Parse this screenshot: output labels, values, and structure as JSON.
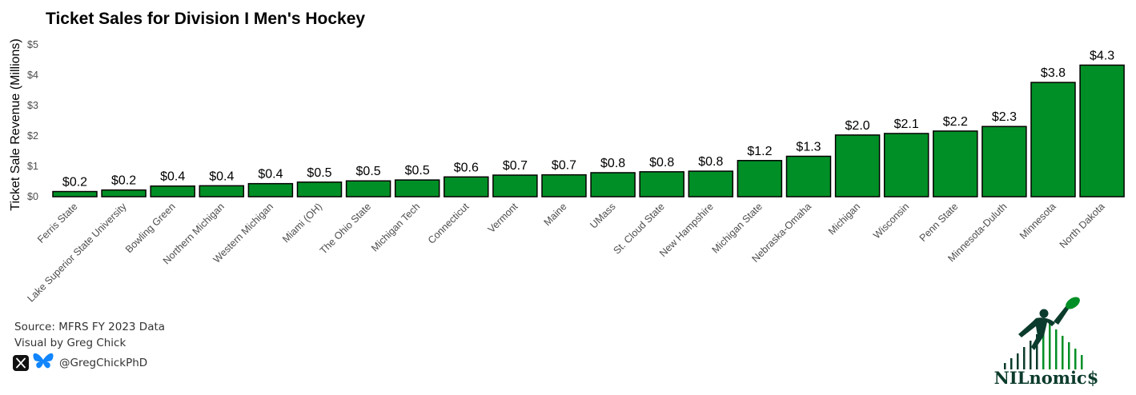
{
  "chart_data": {
    "type": "bar",
    "title": "Ticket Sales for Division I Men's Hockey",
    "xlabel": "",
    "ylabel": "Ticket Sale Revenue (Millions)",
    "ylim": [
      0,
      5
    ],
    "yticks": [
      0,
      1,
      2,
      3,
      4,
      5
    ],
    "ytick_labels": [
      "$0",
      "$1",
      "$2",
      "$3",
      "$4",
      "$5"
    ],
    "categories": [
      "Ferris State",
      "Lake Superior State University",
      "Bowling Green",
      "Northern Michigan",
      "Western Michigan",
      "Miami (OH)",
      "The Ohio State",
      "Michigan Tech",
      "Connecticut",
      "Vermont",
      "Maine",
      "UMass",
      "St. Cloud State",
      "New Hampshire",
      "Michigan State",
      "Nebraska-Omaha",
      "Michigan",
      "Wisconsin",
      "Penn State",
      "Minnesota-Duluth",
      "Minnesota",
      "North Dakota"
    ],
    "values": [
      0.17,
      0.22,
      0.35,
      0.36,
      0.43,
      0.48,
      0.52,
      0.55,
      0.65,
      0.71,
      0.72,
      0.79,
      0.82,
      0.84,
      1.19,
      1.33,
      2.03,
      2.08,
      2.16,
      2.31,
      3.76,
      4.33
    ],
    "data_labels": [
      "$0.2",
      "$0.2",
      "$0.4",
      "$0.4",
      "$0.4",
      "$0.5",
      "$0.5",
      "$0.5",
      "$0.6",
      "$0.7",
      "$0.7",
      "$0.8",
      "$0.8",
      "$0.8",
      "$1.2",
      "$1.3",
      "$2.0",
      "$2.1",
      "$2.2",
      "$2.3",
      "$3.8",
      "$4.3"
    ],
    "bar_color": "#008f26",
    "grid": false,
    "legend": "none"
  },
  "credits": {
    "source": "Source: MFRS FY 2023 Data",
    "visual_by": "Visual by Greg Chick",
    "handle": "@GregChickPhD"
  },
  "icons": {
    "x": "x-logo-icon",
    "bluesky": "bluesky-butterfly-icon"
  },
  "brand": {
    "name": "NILnomic$",
    "color": "#0b3b2c"
  }
}
